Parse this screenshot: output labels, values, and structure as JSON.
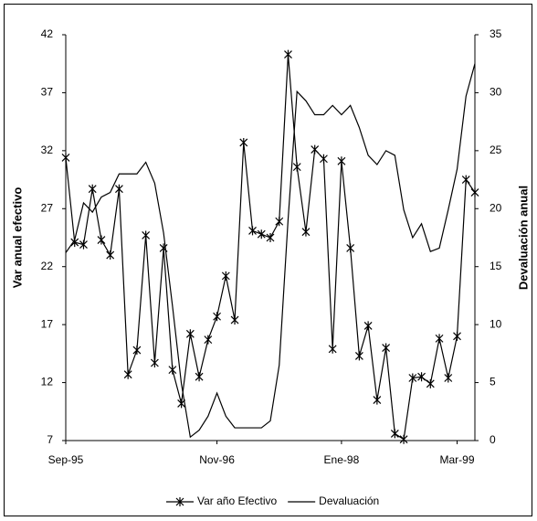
{
  "chart_data": {
    "type": "line",
    "categories": [
      "Sep-95",
      null,
      null,
      null,
      null,
      null,
      null,
      null,
      null,
      null,
      null,
      null,
      null,
      null,
      null,
      null,
      null,
      "Nov-96",
      null,
      null,
      null,
      null,
      null,
      null,
      null,
      null,
      null,
      null,
      null,
      null,
      null,
      "Ene-98",
      null,
      null,
      null,
      null,
      null,
      null,
      null,
      null,
      null,
      null,
      null,
      null,
      "Mar-99",
      null,
      null
    ],
    "y_label": "Var anual efectivo",
    "y2_label": "Devaluación anual",
    "ylim": [
      7,
      42
    ],
    "yticks": [
      7,
      12,
      17,
      22,
      27,
      32,
      37,
      42
    ],
    "y2lim": [
      0,
      35
    ],
    "y2ticks": [
      0,
      5,
      10,
      15,
      20,
      25,
      30,
      35
    ],
    "legend": "bottom",
    "series": [
      {
        "name": "Var año Efectivo",
        "color": "#000000",
        "marker": "star",
        "values": [
          31.4,
          24.1,
          23.9,
          28.7,
          24.3,
          23.0,
          28.7,
          12.7,
          14.8,
          24.7,
          13.7,
          23.6,
          13.1,
          10.2,
          16.2,
          12.5,
          15.7,
          17.7,
          21.2,
          17.4,
          32.7,
          25.1,
          24.8,
          24.5,
          25.9,
          40.3,
          30.6,
          25.0,
          32.1,
          31.3,
          14.9,
          31.1,
          23.6,
          14.3,
          16.9,
          10.5,
          15.0,
          7.6,
          7.1,
          12.4,
          12.5,
          11.9,
          15.8,
          12.4,
          16.0,
          29.5,
          28.4
        ]
      },
      {
        "name": "Devaluación",
        "color": "#000000",
        "axis": "y2",
        "values": [
          16.2,
          17.3,
          20.5,
          19.7,
          21.0,
          21.4,
          23.0,
          23.0,
          23.0,
          24.0,
          22.2,
          17.9,
          11.6,
          4.9,
          0.3,
          0.9,
          2.1,
          4.1,
          2.1,
          1.1,
          1.1,
          1.1,
          1.1,
          1.7,
          6.5,
          19.1,
          30.1,
          29.3,
          28.1,
          28.1,
          28.9,
          28.1,
          28.9,
          27.0,
          24.6,
          23.8,
          25.0,
          24.6,
          19.9,
          17.5,
          18.7,
          16.3,
          16.6,
          19.9,
          23.4,
          29.7,
          32.5
        ]
      }
    ]
  }
}
